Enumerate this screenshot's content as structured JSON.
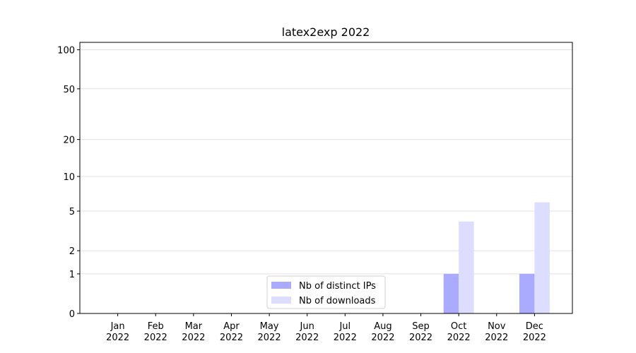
{
  "chart_data": {
    "type": "bar",
    "title": "latex2exp 2022",
    "categories": [
      "Jan\n2022",
      "Feb\n2022",
      "Mar\n2022",
      "Apr\n2022",
      "May\n2022",
      "Jun\n2022",
      "Jul\n2022",
      "Aug\n2022",
      "Sep\n2022",
      "Oct\n2022",
      "Nov\n2022",
      "Dec\n2022"
    ],
    "series": [
      {
        "name": "Nb of distinct IPs",
        "color": "#aaaaff",
        "values": [
          0,
          0,
          0,
          0,
          0,
          0,
          0,
          0,
          0,
          1,
          0,
          1
        ]
      },
      {
        "name": "Nb of downloads",
        "color": "#ddddff",
        "values": [
          0,
          0,
          0,
          0,
          0,
          0,
          0,
          0,
          0,
          4,
          0,
          6
        ]
      }
    ],
    "yscale": "log1p",
    "ylim": [
      0,
      114
    ],
    "yticks": [
      0,
      1,
      2,
      5,
      10,
      20,
      50,
      100
    ],
    "grid": true,
    "legend": "lower center"
  }
}
